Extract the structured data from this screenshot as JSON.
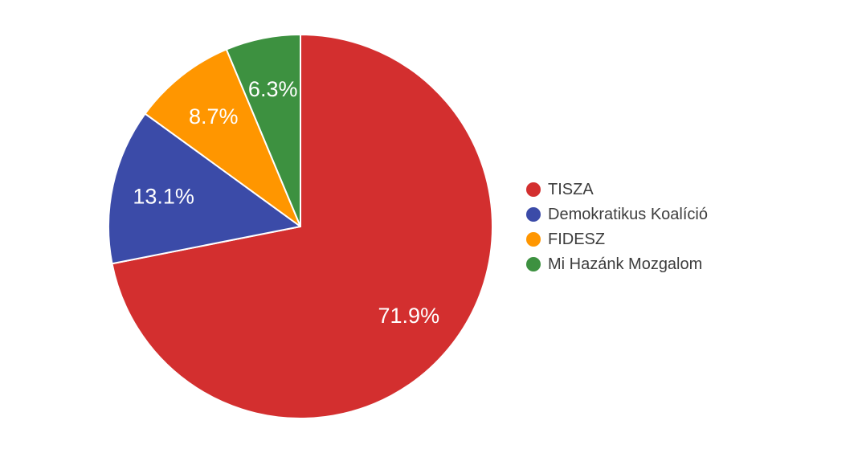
{
  "chart_data": {
    "type": "pie",
    "title": "",
    "categories": [
      "TISZA",
      "Demokratikus Koalíció",
      "FIDESZ",
      "Mi Hazánk Mozgalom"
    ],
    "values": [
      71.9,
      13.1,
      8.7,
      6.3
    ],
    "value_labels": [
      "71.9%",
      "13.1%",
      "8.7%",
      "6.3%"
    ],
    "colors": [
      "#d32f2f",
      "#3b4ba8",
      "#ff9600",
      "#3d9140"
    ],
    "slice_border_color": "#ffffff",
    "value_label_color": "#ffffff",
    "legend_position": "right",
    "legend_text_color": "#3d3d3d",
    "start_angle_deg": 0,
    "direction": "clockwise",
    "background_color": "#ffffff"
  }
}
